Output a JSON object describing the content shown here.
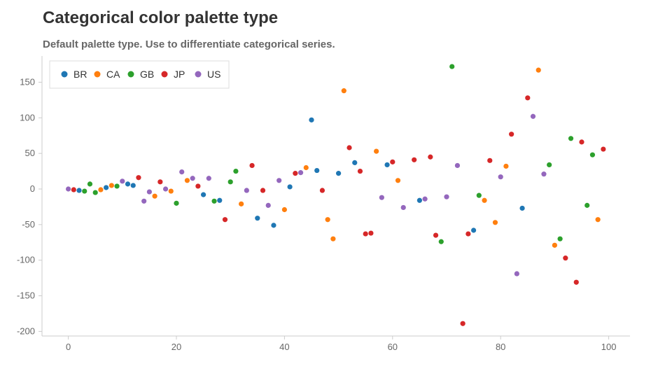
{
  "header": {
    "title": "Categorical color palette type",
    "subtitle": "Default palette type. Use to differentiate categorical series."
  },
  "chart_data": {
    "type": "scatter",
    "title": "Categorical color palette type",
    "subtitle": "Default palette type. Use to differentiate categorical series.",
    "xlabel": "",
    "ylabel": "",
    "xlim": [
      -5,
      104
    ],
    "ylim": [
      -205,
      190
    ],
    "x_ticks": [
      0,
      20,
      40,
      60,
      80,
      100
    ],
    "y_ticks": [
      150,
      100,
      50,
      0,
      -50,
      -100,
      -150,
      -200
    ],
    "grid": false,
    "legend": "top-left",
    "series": [
      {
        "name": "BR",
        "color": "#1f77b4",
        "points": [
          [
            2,
            -2
          ],
          [
            7,
            2
          ],
          [
            11,
            7
          ],
          [
            12,
            5
          ],
          [
            25,
            -8
          ],
          [
            28,
            -16
          ],
          [
            35,
            -41
          ],
          [
            38,
            -51
          ],
          [
            41,
            3
          ],
          [
            45,
            97
          ],
          [
            46,
            26
          ],
          [
            50,
            22
          ],
          [
            53,
            37
          ],
          [
            59,
            34
          ],
          [
            65,
            -16
          ],
          [
            75,
            -58
          ],
          [
            84,
            -27
          ]
        ]
      },
      {
        "name": "CA",
        "color": "#ff7f0e",
        "points": [
          [
            6,
            -1
          ],
          [
            8,
            5
          ],
          [
            16,
            -10
          ],
          [
            19,
            -3
          ],
          [
            22,
            12
          ],
          [
            32,
            -21
          ],
          [
            40,
            -29
          ],
          [
            44,
            30
          ],
          [
            48,
            -43
          ],
          [
            49,
            -70
          ],
          [
            51,
            138
          ],
          [
            57,
            53
          ],
          [
            61,
            12
          ],
          [
            77,
            -16
          ],
          [
            79,
            -47
          ],
          [
            81,
            32
          ],
          [
            87,
            167
          ],
          [
            90,
            -79
          ],
          [
            98,
            -43
          ]
        ]
      },
      {
        "name": "GB",
        "color": "#2ca02c",
        "points": [
          [
            3,
            -3
          ],
          [
            4,
            7
          ],
          [
            5,
            -5
          ],
          [
            9,
            4
          ],
          [
            20,
            -20
          ],
          [
            27,
            -17
          ],
          [
            30,
            10
          ],
          [
            31,
            25
          ],
          [
            69,
            -74
          ],
          [
            71,
            172
          ],
          [
            76,
            -9
          ],
          [
            89,
            34
          ],
          [
            91,
            -70
          ],
          [
            93,
            71
          ],
          [
            96,
            -23
          ],
          [
            97,
            48
          ]
        ]
      },
      {
        "name": "JP",
        "color": "#d62728",
        "points": [
          [
            1,
            -1
          ],
          [
            13,
            16
          ],
          [
            17,
            10
          ],
          [
            24,
            4
          ],
          [
            29,
            -43
          ],
          [
            34,
            33
          ],
          [
            36,
            -2
          ],
          [
            42,
            22
          ],
          [
            47,
            -2
          ],
          [
            52,
            58
          ],
          [
            54,
            25
          ],
          [
            55,
            -63
          ],
          [
            56,
            -62
          ],
          [
            60,
            38
          ],
          [
            64,
            41
          ],
          [
            67,
            45
          ],
          [
            68,
            -65
          ],
          [
            73,
            -189
          ],
          [
            74,
            -63
          ],
          [
            78,
            40
          ],
          [
            82,
            77
          ],
          [
            85,
            128
          ],
          [
            92,
            -97
          ],
          [
            94,
            -131
          ],
          [
            95,
            66
          ],
          [
            99,
            56
          ]
        ]
      },
      {
        "name": "US",
        "color": "#9467bd",
        "points": [
          [
            0,
            0
          ],
          [
            10,
            11
          ],
          [
            14,
            -17
          ],
          [
            15,
            -4
          ],
          [
            18,
            0
          ],
          [
            21,
            24
          ],
          [
            23,
            15
          ],
          [
            26,
            15
          ],
          [
            33,
            -2
          ],
          [
            37,
            -23
          ],
          [
            39,
            12
          ],
          [
            43,
            23
          ],
          [
            58,
            -12
          ],
          [
            62,
            -26
          ],
          [
            66,
            -14
          ],
          [
            70,
            -11
          ],
          [
            72,
            33
          ],
          [
            80,
            17
          ],
          [
            83,
            -119
          ],
          [
            86,
            102
          ],
          [
            88,
            21
          ]
        ]
      }
    ]
  }
}
